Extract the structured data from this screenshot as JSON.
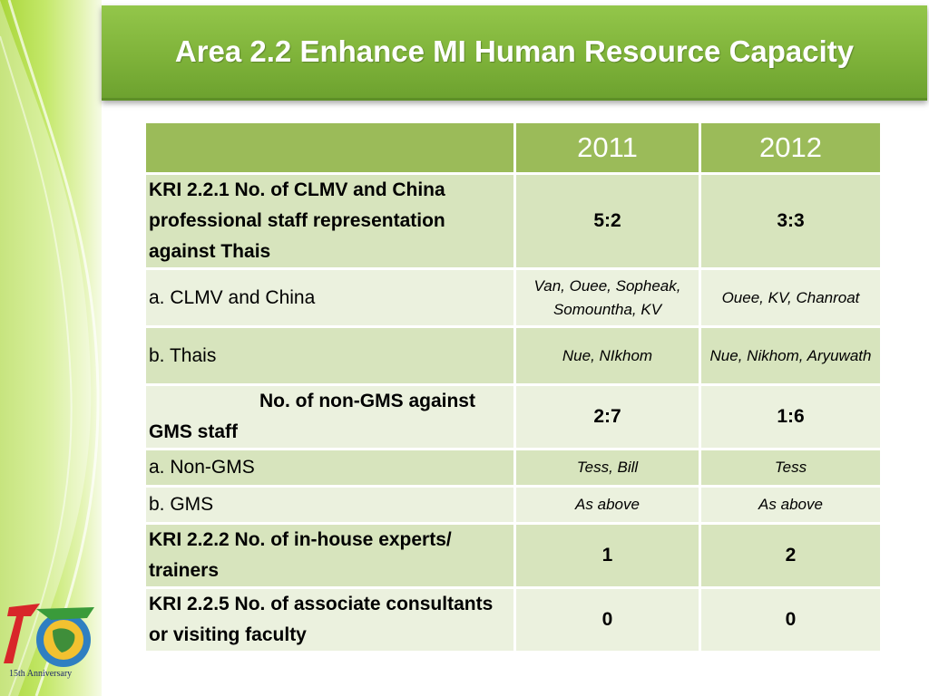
{
  "title": "Area 2.2 Enhance MI Human Resource Capacity",
  "table": {
    "headers": [
      "",
      "2011",
      "2012"
    ],
    "rows": [
      {
        "label": "KRI 2.2.1  No. of CLMV and China professional staff representation against Thais",
        "v2011": "5:2",
        "v2012": "3:3"
      },
      {
        "label": "a.  CLMV and China",
        "v2011": "Van, Ouee, Sopheak, Somountha, KV",
        "v2012": "Ouee, KV, Chanroat"
      },
      {
        "label": "b.  Thais",
        "v2011": "Nue, NIkhom",
        "v2012": "Nue, Nikhom, Aryuwath"
      },
      {
        "label": "No. of non-GMS against GMS staff",
        "v2011": "2:7",
        "v2012": "1:6"
      },
      {
        "label": "a. Non-GMS",
        "v2011": "Tess, Bill",
        "v2012": "Tess"
      },
      {
        "label": "b. GMS",
        "v2011": "As above",
        "v2012": "As above"
      },
      {
        "label": "KRI 2.2.2 No. of in-house experts/ trainers",
        "v2011": "1",
        "v2012": "2"
      },
      {
        "label": "KRI 2.2.5 No. of associate consultants or visiting faculty",
        "v2011": "0",
        "v2012": "0"
      }
    ]
  },
  "logo": {
    "caption": "15th Anniversary",
    "digits": "15"
  },
  "colors": {
    "header_green": "#9bbb59",
    "row_dark": "#d7e4bd",
    "row_light": "#ebf1de",
    "title_green": "#7fb33a"
  }
}
